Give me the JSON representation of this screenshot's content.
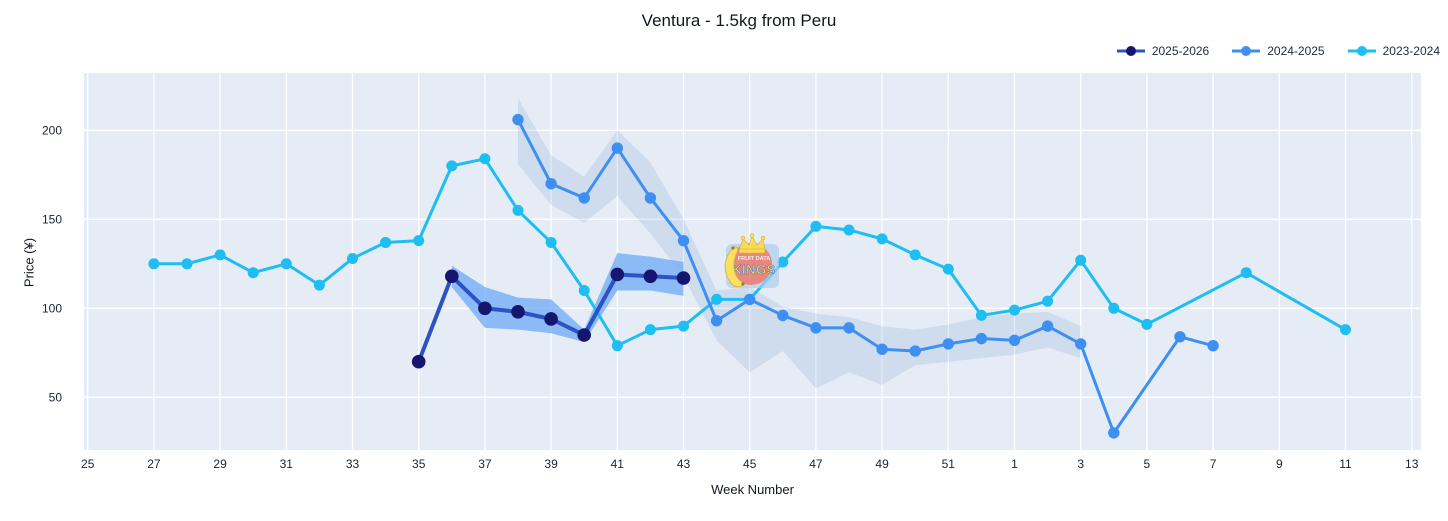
{
  "title": "Ventura - 1.5kg from Peru",
  "watermark": {
    "top_text": "FRUIT DATA",
    "main_text": "KINGS"
  },
  "chart_data": {
    "type": "line",
    "title": "Ventura - 1.5kg from Peru",
    "xlabel": "Week Number",
    "ylabel": "Price (¥)",
    "legend_position": "top-right",
    "grid": true,
    "plot_bg_color": "#e5ecf6",
    "gridline_color": "#ffffff",
    "ylim": [
      20,
      232
    ],
    "yticks": [
      50,
      100,
      150,
      200
    ],
    "x_tick_labels": [
      25,
      27,
      29,
      31,
      33,
      35,
      37,
      39,
      41,
      43,
      45,
      47,
      49,
      51,
      1,
      3,
      5,
      7,
      9,
      11,
      13
    ],
    "week_axis_order": [
      25,
      26,
      27,
      28,
      29,
      30,
      31,
      32,
      33,
      34,
      35,
      36,
      37,
      38,
      39,
      40,
      41,
      42,
      43,
      44,
      45,
      46,
      47,
      48,
      49,
      50,
      51,
      52,
      1,
      2,
      3,
      4,
      5,
      6,
      7,
      8,
      9,
      10,
      11,
      12,
      13
    ],
    "series": [
      {
        "name": "2023-2024",
        "line_color": "#1ebdf2",
        "marker_color": "#1ebdf2",
        "line_width": 3,
        "marker_radius": 5.5,
        "points": [
          [
            27,
            125
          ],
          [
            28,
            125
          ],
          [
            29,
            130
          ],
          [
            30,
            120
          ],
          [
            31,
            125
          ],
          [
            32,
            113
          ],
          [
            33,
            128
          ],
          [
            34,
            137
          ],
          [
            35,
            138
          ],
          [
            36,
            180
          ],
          [
            37,
            184
          ],
          [
            38,
            155
          ],
          [
            39,
            137
          ],
          [
            40,
            110
          ],
          [
            41,
            79
          ],
          [
            42,
            88
          ],
          [
            43,
            90
          ],
          [
            44,
            105
          ],
          [
            45,
            105
          ],
          [
            46,
            126
          ],
          [
            47,
            146
          ],
          [
            48,
            144
          ],
          [
            49,
            139
          ],
          [
            50,
            130
          ],
          [
            51,
            122
          ],
          [
            52,
            96
          ],
          [
            1,
            99
          ],
          [
            2,
            104
          ],
          [
            3,
            127
          ],
          [
            4,
            100
          ],
          [
            5,
            91
          ],
          [
            8,
            120
          ],
          [
            11,
            88
          ]
        ]
      },
      {
        "name": "2024-2025",
        "line_color": "#3e8ff2",
        "marker_color": "#3e8ff2",
        "line_width": 3,
        "marker_radius": 5.7,
        "points": [
          [
            38,
            206
          ],
          [
            39,
            170
          ],
          [
            40,
            162
          ],
          [
            41,
            190
          ],
          [
            42,
            162
          ],
          [
            43,
            138
          ],
          [
            44,
            93
          ],
          [
            45,
            105
          ],
          [
            46,
            96
          ],
          [
            47,
            89
          ],
          [
            48,
            89
          ],
          [
            49,
            77
          ],
          [
            50,
            76
          ],
          [
            51,
            80
          ],
          [
            52,
            83
          ],
          [
            1,
            82
          ],
          [
            2,
            90
          ],
          [
            3,
            80
          ],
          [
            4,
            30
          ],
          [
            6,
            84
          ],
          [
            7,
            79
          ]
        ],
        "band": {
          "color": "rgba(120,160,210,0.20)",
          "x": [
            38,
            39,
            40,
            41,
            42,
            43,
            44,
            45,
            46,
            47,
            48,
            49,
            50,
            51,
            52,
            1,
            2,
            3
          ],
          "upper": [
            218,
            186,
            174,
            200,
            182,
            150,
            110,
            112,
            101,
            97,
            95,
            90,
            88,
            91,
            95,
            97,
            98,
            90
          ],
          "lower": [
            181,
            158,
            148,
            163,
            142,
            118,
            82,
            64,
            76,
            55,
            64,
            57,
            68,
            70,
            72,
            74,
            78,
            72
          ]
        }
      },
      {
        "name": "2025-2026",
        "line_color": "#2c52c5",
        "marker_color": "#16166e",
        "line_width": 4,
        "marker_radius": 6.8,
        "points": [
          [
            35,
            70
          ],
          [
            36,
            118
          ],
          [
            37,
            100
          ],
          [
            38,
            98
          ],
          [
            39,
            94
          ],
          [
            40,
            85
          ],
          [
            41,
            119
          ],
          [
            42,
            118
          ],
          [
            43,
            117
          ]
        ],
        "band": {
          "color": "rgba(110,170,245,0.75)",
          "x": [
            36,
            37,
            38,
            39,
            40,
            41,
            42,
            43
          ],
          "upper": [
            124,
            112,
            106,
            105,
            88,
            131,
            129,
            126
          ],
          "lower": [
            112,
            89,
            88,
            86,
            81,
            110,
            110,
            107
          ]
        }
      }
    ]
  }
}
